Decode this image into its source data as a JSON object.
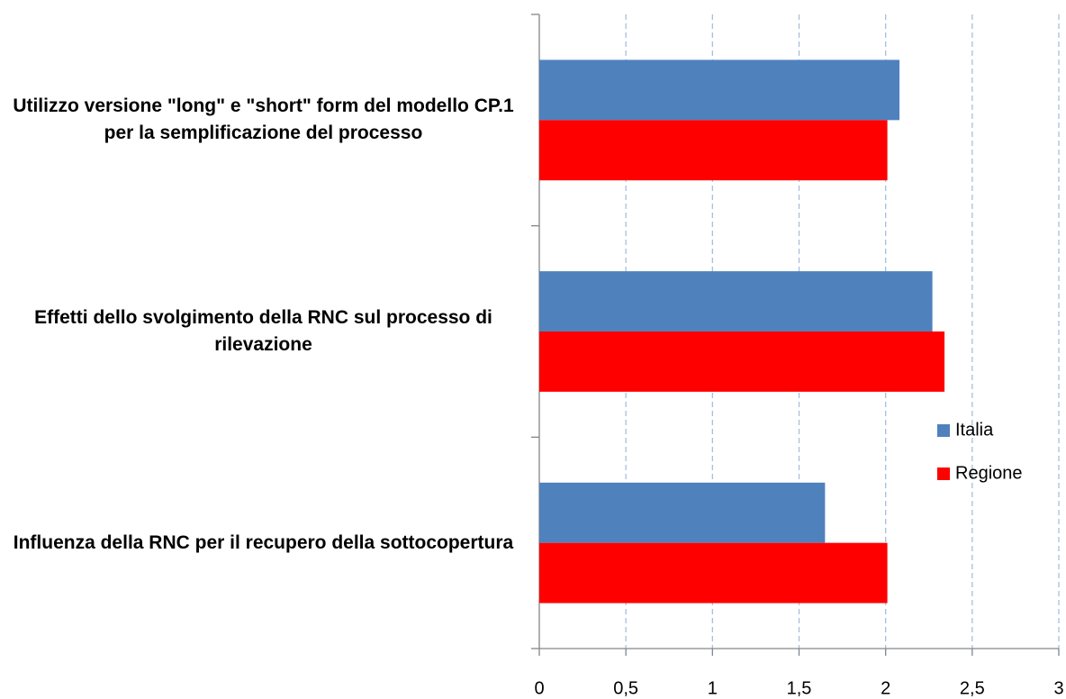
{
  "chart_data": {
    "type": "hbar",
    "categories": [
      "Utilizzo versione \"long\" e \"short\" form del modello CP.1 per la semplificazione del processo",
      "Effetti dello svolgimento della RNC sul processo di rilevazione",
      "Influenza della RNC per il recupero della sottocopertura"
    ],
    "series": [
      {
        "name": "Italia",
        "color": "#4f81bd",
        "values": [
          2.08,
          2.27,
          1.65
        ]
      },
      {
        "name": "Regione",
        "color": "#ff0000",
        "values": [
          2.01,
          2.34,
          2.01
        ]
      }
    ],
    "xlim": [
      0,
      3
    ],
    "xticks": [
      0,
      {
        "value": 0.5,
        "label": "0,5"
      },
      1,
      {
        "value": 1.5,
        "label": "1,5"
      },
      2,
      {
        "value": 2.5,
        "label": "2,5"
      },
      3
    ],
    "grid": true,
    "legend": "right"
  }
}
